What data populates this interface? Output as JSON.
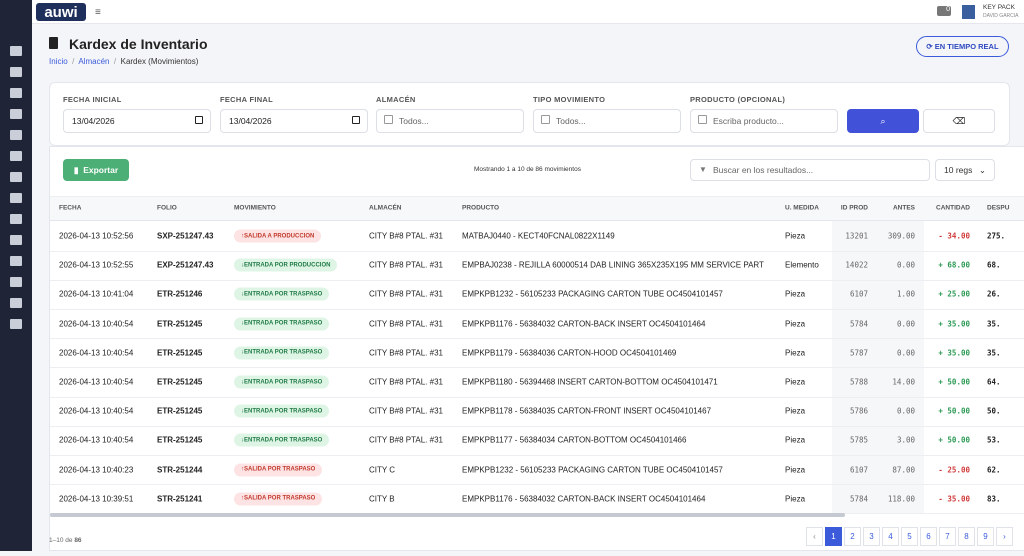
{
  "topbar": {
    "logo": "auwi",
    "badge": "0",
    "company": "KEY PACK",
    "user": "DAVID GARCIA"
  },
  "header": {
    "title": "Kardex de Inventario",
    "breadcrumb": [
      "Inicio",
      "Almacén",
      "Kardex (Movimientos)"
    ],
    "live_button": "EN TIEMPO REAL"
  },
  "filters": {
    "labels": [
      "FECHA INICIAL",
      "FECHA FINAL",
      "ALMACÉN",
      "TIPO MOVIMIENTO",
      "PRODUCTO (OPCIONAL)"
    ],
    "inputs": [
      "13/04/2026",
      "13/04/2026",
      "Todos...",
      "Todos...",
      "Escriba producto..."
    ]
  },
  "toolbar": {
    "export": "Exportar",
    "summary": "Mostrando 1 a 10 de 86 movimientos",
    "search": "Buscar en los resultados...",
    "page_size": "10 regs"
  },
  "table": {
    "columns": [
      "FECHA",
      "FOLIO",
      "MOVIMIENTO",
      "ALMACÉN",
      "PRODUCTO",
      "U. MEDIDA",
      "ID PROD",
      "ANTES",
      "CANTIDAD",
      "DESPU"
    ],
    "rows": [
      [
        "2026-04-13 10:52:56",
        "SXP-251247.43",
        "SALIDA A PRODUCCION",
        "CITY B#8 PTAL. #31",
        "MATBAJ0440 - KECT40FCNAL0822X1149",
        "Pieza",
        "13201",
        "309.00",
        "- 34.00",
        "275."
      ],
      [
        "2026-04-13 10:52:55",
        "EXP-251247.43",
        "ENTRADA POR PRODUCCION",
        "CITY B#8 PTAL. #31",
        "EMPBAJ0238 - REJILLA 60000514 DAB LINING 365X235X195 MM SERVICE PART",
        "Elemento",
        "14022",
        "0.00",
        "+ 68.00",
        "68."
      ],
      [
        "2026-04-13 10:41:04",
        "ETR-251246",
        "ENTRADA POR TRASPASO",
        "CITY B#8 PTAL. #31",
        "EMPKPB1232 - 56105233 PACKAGING CARTON TUBE OC4504101457",
        "Pieza",
        "6107",
        "1.00",
        "+ 25.00",
        "26."
      ],
      [
        "2026-04-13 10:40:54",
        "ETR-251245",
        "ENTRADA POR TRASPASO",
        "CITY B#8 PTAL. #31",
        "EMPKPB1176 - 56384032 CARTON-BACK INSERT OC4504101464",
        "Pieza",
        "5784",
        "0.00",
        "+ 35.00",
        "35."
      ],
      [
        "2026-04-13 10:40:54",
        "ETR-251245",
        "ENTRADA POR TRASPASO",
        "CITY B#8 PTAL. #31",
        "EMPKPB1179 - 56384036 CARTON-HOOD OC4504101469",
        "Pieza",
        "5787",
        "0.00",
        "+ 35.00",
        "35."
      ],
      [
        "2026-04-13 10:40:54",
        "ETR-251245",
        "ENTRADA POR TRASPASO",
        "CITY B#8 PTAL. #31",
        "EMPKPB1180 - 56394468 INSERT CARTON-BOTTOM OC4504101471",
        "Pieza",
        "5788",
        "14.00",
        "+ 50.00",
        "64."
      ],
      [
        "2026-04-13 10:40:54",
        "ETR-251245",
        "ENTRADA POR TRASPASO",
        "CITY B#8 PTAL. #31",
        "EMPKPB1178 - 56384035 CARTON-FRONT INSERT OC4504101467",
        "Pieza",
        "5786",
        "0.00",
        "+ 50.00",
        "50."
      ],
      [
        "2026-04-13 10:40:54",
        "ETR-251245",
        "ENTRADA POR TRASPASO",
        "CITY B#8 PTAL. #31",
        "EMPKPB1177 - 56384034 CARTON-BOTTOM OC4504101466",
        "Pieza",
        "5785",
        "3.00",
        "+ 50.00",
        "53."
      ],
      [
        "2026-04-13 10:40:23",
        "STR-251244",
        "SALIDA POR TRASPASO",
        "CITY C",
        "EMPKPB1232 - 56105233 PACKAGING CARTON TUBE OC4504101457",
        "Pieza",
        "6107",
        "87.00",
        "- 25.00",
        "62."
      ],
      [
        "2026-04-13 10:39:51",
        "STR-251241",
        "SALIDA POR TRASPASO",
        "CITY B",
        "EMPKPB1176 - 56384032 CARTON-BACK INSERT OC4504101464",
        "Pieza",
        "5784",
        "118.00",
        "- 35.00",
        "83."
      ]
    ]
  },
  "footer": {
    "range": "1–10 de",
    "total": "86",
    "prev": "‹",
    "pages": [
      1,
      2,
      3,
      4,
      5,
      6,
      7,
      8,
      9
    ],
    "next": "›"
  }
}
